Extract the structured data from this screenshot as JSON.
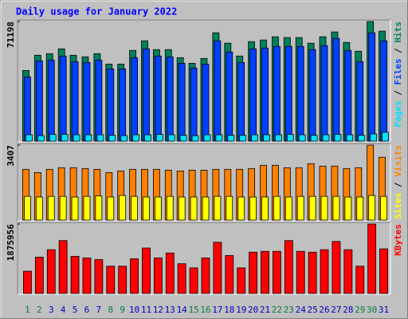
{
  "title": "Daily usage for January 2022",
  "chart_data": [
    {
      "type": "bar",
      "legend_separator": " / ",
      "ylim": [
        0,
        71198
      ],
      "yticks": [
        71198
      ],
      "series": [
        {
          "name": "Pages",
          "color": "#00e0ff",
          "values": [
            3800,
            3300,
            4000,
            4000,
            3800,
            3800,
            3800,
            3500,
            3300,
            3800,
            3800,
            4000,
            3800,
            3500,
            3300,
            3800,
            3800,
            3500,
            3500,
            3800,
            3800,
            3800,
            4000,
            3800,
            3500,
            3800,
            4000,
            3800,
            3500,
            4300,
            5300
          ]
        },
        {
          "name": "Files",
          "color": "#0040ff",
          "values": [
            38220,
            47780,
            48260,
            50650,
            47300,
            46820,
            48260,
            43000,
            43000,
            49690,
            54950,
            50650,
            50170,
            46350,
            43480,
            45870,
            59730,
            53040,
            46820,
            54950,
            55430,
            56380,
            56380,
            56380,
            54470,
            56860,
            61160,
            53990,
            47300,
            64510,
            59730
          ]
        },
        {
          "name": "Hits",
          "color": "#00805c",
          "values": [
            42050,
            51130,
            52080,
            54950,
            51130,
            50170,
            52080,
            45870,
            45870,
            54000,
            59730,
            54470,
            54470,
            49690,
            46350,
            49220,
            64510,
            58300,
            50650,
            59250,
            60210,
            62120,
            61640,
            61640,
            58300,
            62120,
            64990,
            58770,
            53520,
            71198,
            65460
          ]
        }
      ]
    },
    {
      "type": "bar",
      "legend_separator": " / ",
      "ylim": [
        0,
        3407
      ],
      "yticks": [
        3407
      ],
      "series": [
        {
          "name": "Sites",
          "color": "#ffff00",
          "values": [
            1080,
            1050,
            1080,
            1080,
            1050,
            1080,
            1100,
            1050,
            1120,
            1080,
            1050,
            1050,
            1080,
            1050,
            1050,
            1050,
            1080,
            1080,
            1050,
            1050,
            1050,
            1080,
            1050,
            1080,
            1080,
            1080,
            1080,
            1050,
            1050,
            1120,
            1080
          ]
        },
        {
          "name": "Visits",
          "color": "#ff8000",
          "values": [
            2308,
            2161,
            2308,
            2381,
            2381,
            2344,
            2308,
            2161,
            2234,
            2308,
            2308,
            2308,
            2271,
            2234,
            2271,
            2271,
            2308,
            2308,
            2308,
            2344,
            2491,
            2491,
            2381,
            2381,
            2564,
            2454,
            2454,
            2344,
            2381,
            3407,
            2857
          ]
        }
      ]
    },
    {
      "type": "bar",
      "ylim": [
        0,
        1875956
      ],
      "yticks": [
        1875956
      ],
      "categories": [
        "1",
        "2",
        "3",
        "4",
        "5",
        "6",
        "7",
        "8",
        "9",
        "10",
        "11",
        "12",
        "13",
        "14",
        "15",
        "16",
        "17",
        "18",
        "19",
        "20",
        "21",
        "22",
        "23",
        "24",
        "25",
        "26",
        "27",
        "28",
        "29",
        "30",
        "31"
      ],
      "category_colors": [
        "#008040",
        "#008040",
        "#0000c0",
        "#0000c0",
        "#0000c0",
        "#0000c0",
        "#0000c0",
        "#008040",
        "#008040",
        "#0000c0",
        "#0000c0",
        "#0000c0",
        "#0000c0",
        "#0000c0",
        "#008040",
        "#008040",
        "#0000c0",
        "#0000c0",
        "#0000c0",
        "#0000c0",
        "#0000c0",
        "#008040",
        "#008040",
        "#0000c0",
        "#0000c0",
        "#0000c0",
        "#0000c0",
        "#0000c0",
        "#008040",
        "#008040",
        "#0000c0"
      ],
      "series": [
        {
          "name": "KBytes",
          "color": "#ff0000",
          "values": [
            603000,
            982650,
            1183650,
            1429300,
            1005000,
            960300,
            915650,
            737000,
            737000,
            937990,
            1228300,
            960300,
            1094300,
            804000,
            692300,
            960300,
            1384650,
            1027300,
            692300,
            1116650,
            1139000,
            1139000,
            1429300,
            1139000,
            1116650,
            1183650,
            1407000,
            1183650,
            737000,
            1875956,
            1206000
          ]
        }
      ]
    }
  ]
}
